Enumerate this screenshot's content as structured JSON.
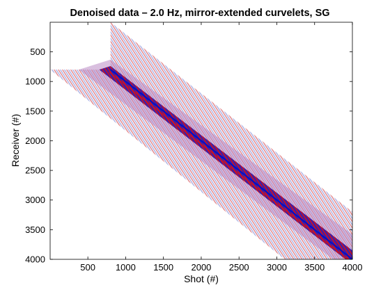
{
  "chart_data": {
    "type": "heatmap",
    "title": "Denoised data – 2.0 Hz, mirror-extended curvelets, SG",
    "xlabel": "Shot (#)",
    "ylabel": "Receiver (#)",
    "xlim": [
      1,
      4000
    ],
    "ylim": [
      1,
      4000
    ],
    "y_direction": "reversed",
    "xticks": [
      500,
      1000,
      1500,
      2000,
      2500,
      3000,
      3500,
      4000
    ],
    "yticks": [
      500,
      1000,
      1500,
      2000,
      2500,
      3000,
      3500,
      4000
    ],
    "colormap": {
      "negative": "#0000cc",
      "zero": "#ffffff",
      "positive": "#cc0000",
      "band_mix": "#6a1a7a"
    },
    "data_extent": {
      "corner_block_x": [
        1,
        800
      ],
      "corner_block_y": [
        1,
        800
      ],
      "edge_start_receiver": 800,
      "edge_end_receiver": 4000,
      "top_edge_start_shot": 800,
      "top_edge_start_receiver": 1,
      "top_edge_end_shot": 4000,
      "top_edge_end_receiver": 3200
    },
    "diagonal": {
      "from": [
        800,
        800
      ],
      "to": [
        4000,
        4000
      ]
    },
    "grid": false,
    "legend": "none"
  }
}
